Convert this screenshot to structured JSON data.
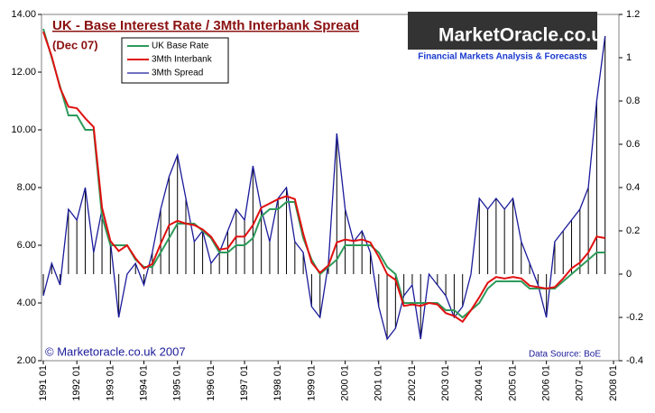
{
  "chart_data": {
    "type": "line",
    "title": "UK - Base Interest Rate / 3Mth Interbank Spread",
    "subtitle": "(Dec 07)",
    "copyright": "© Marketoracle.co.uk 2007",
    "source": "Data Source: BoE",
    "logo": {
      "name": "MarketOracle.co.uk",
      "tagline": "Financial Markets Analysis & Forecasts"
    },
    "categories": [
      "1991 01",
      null,
      null,
      null,
      "1992 01",
      null,
      null,
      null,
      "1993 01",
      null,
      null,
      null,
      "1994 01",
      null,
      null,
      null,
      "1995 01",
      null,
      null,
      null,
      "1996 01",
      null,
      null,
      null,
      "1997 01",
      null,
      null,
      null,
      "1998 01",
      null,
      null,
      null,
      "1999 01",
      null,
      null,
      null,
      "2000 01",
      null,
      null,
      null,
      "2001 01",
      null,
      null,
      null,
      "2002 01",
      null,
      null,
      null,
      "2003 01",
      null,
      null,
      null,
      "2004 01",
      null,
      null,
      null,
      "2005 01",
      null,
      null,
      null,
      "2006 01",
      null,
      null,
      null,
      "2007 01",
      null,
      null,
      null,
      "2008 01"
    ],
    "series": [
      {
        "name": "UK Base Rate",
        "color": "#2e9a5a",
        "style": "line",
        "values": [
          13.5,
          12.5,
          11.5,
          10.5,
          10.5,
          10,
          10,
          7,
          6,
          6,
          6,
          5.5,
          5.25,
          5.25,
          5.75,
          6.25,
          6.75,
          6.75,
          6.75,
          6.5,
          6.25,
          5.75,
          5.75,
          6,
          6,
          6.25,
          7,
          7.25,
          7.25,
          7.5,
          7.5,
          6.25,
          5.5,
          5,
          5.25,
          5.5,
          6,
          6,
          6,
          6,
          5.75,
          5.25,
          5,
          4,
          4,
          4,
          4,
          4,
          3.75,
          3.75,
          3.5,
          3.75,
          4,
          4.5,
          4.75,
          4.75,
          4.75,
          4.75,
          4.5,
          4.5,
          4.5,
          4.5,
          4.75,
          5,
          5.25,
          5.5,
          5.75,
          5.75,
          null
        ]
      },
      {
        "name": "3Mth Interbank",
        "color": "#e01010",
        "style": "line",
        "values": [
          13.4,
          12.55,
          11.45,
          10.8,
          10.75,
          10.4,
          10.1,
          7.3,
          6.15,
          5.8,
          6,
          5.55,
          5.2,
          5.35,
          6.05,
          6.7,
          6.85,
          6.75,
          6.7,
          6.55,
          6.3,
          5.85,
          5.9,
          6.3,
          6.3,
          6.7,
          7.3,
          7.45,
          7.6,
          7.7,
          7.6,
          6.4,
          5.4,
          5.05,
          5.3,
          6.1,
          6.2,
          6.15,
          6.2,
          6.1,
          5.6,
          5,
          4.8,
          3.9,
          3.95,
          3.9,
          4,
          3.95,
          3.65,
          3.55,
          3.35,
          3.75,
          4.2,
          4.7,
          4.9,
          4.85,
          4.9,
          4.85,
          4.6,
          4.55,
          4.5,
          4.55,
          4.85,
          5.2,
          5.4,
          5.75,
          6.3,
          6.25,
          null
        ]
      },
      {
        "name": "3Mth Spread",
        "color": "#1a1a9a",
        "style": "spread",
        "axis": "y2",
        "values": [
          -0.1,
          0.05,
          -0.05,
          0.3,
          0.25,
          0.4,
          0.1,
          0.3,
          0.15,
          -0.2,
          0,
          0.05,
          -0.05,
          0.1,
          0.3,
          0.45,
          0.55,
          0.35,
          0.15,
          0.2,
          0.05,
          0.1,
          0.2,
          0.3,
          0.25,
          0.5,
          0.3,
          0.15,
          0.35,
          0.4,
          0.15,
          0.1,
          -0.15,
          -0.2,
          0.05,
          0.65,
          0.3,
          0.15,
          0.2,
          0.1,
          -0.15,
          -0.3,
          -0.25,
          -0.1,
          -0.05,
          -0.3,
          0,
          -0.05,
          -0.1,
          -0.2,
          -0.15,
          0,
          0.35,
          0.3,
          0.35,
          0.3,
          0.35,
          0.15,
          0.05,
          -0.05,
          -0.2,
          0.15,
          0.2,
          0.25,
          0.3,
          0.4,
          0.8,
          1.1,
          null
        ]
      }
    ],
    "ylim": [
      2,
      14
    ],
    "yticks": [
      {
        "value": 2,
        "label": "2.00"
      },
      {
        "value": 4,
        "label": "4.00"
      },
      {
        "value": 6,
        "label": "6.00"
      },
      {
        "value": 8,
        "label": "8.00"
      },
      {
        "value": 10,
        "label": "10.00"
      },
      {
        "value": 12,
        "label": "12.00"
      },
      {
        "value": 14,
        "label": "14.00"
      }
    ],
    "y2lim": [
      -0.4,
      1.2
    ],
    "y2ticks": [
      -0.4,
      -0.2,
      0,
      0.2,
      0.4,
      0.6,
      0.8,
      1,
      1.2
    ],
    "grid": false,
    "legend": "top-left"
  }
}
